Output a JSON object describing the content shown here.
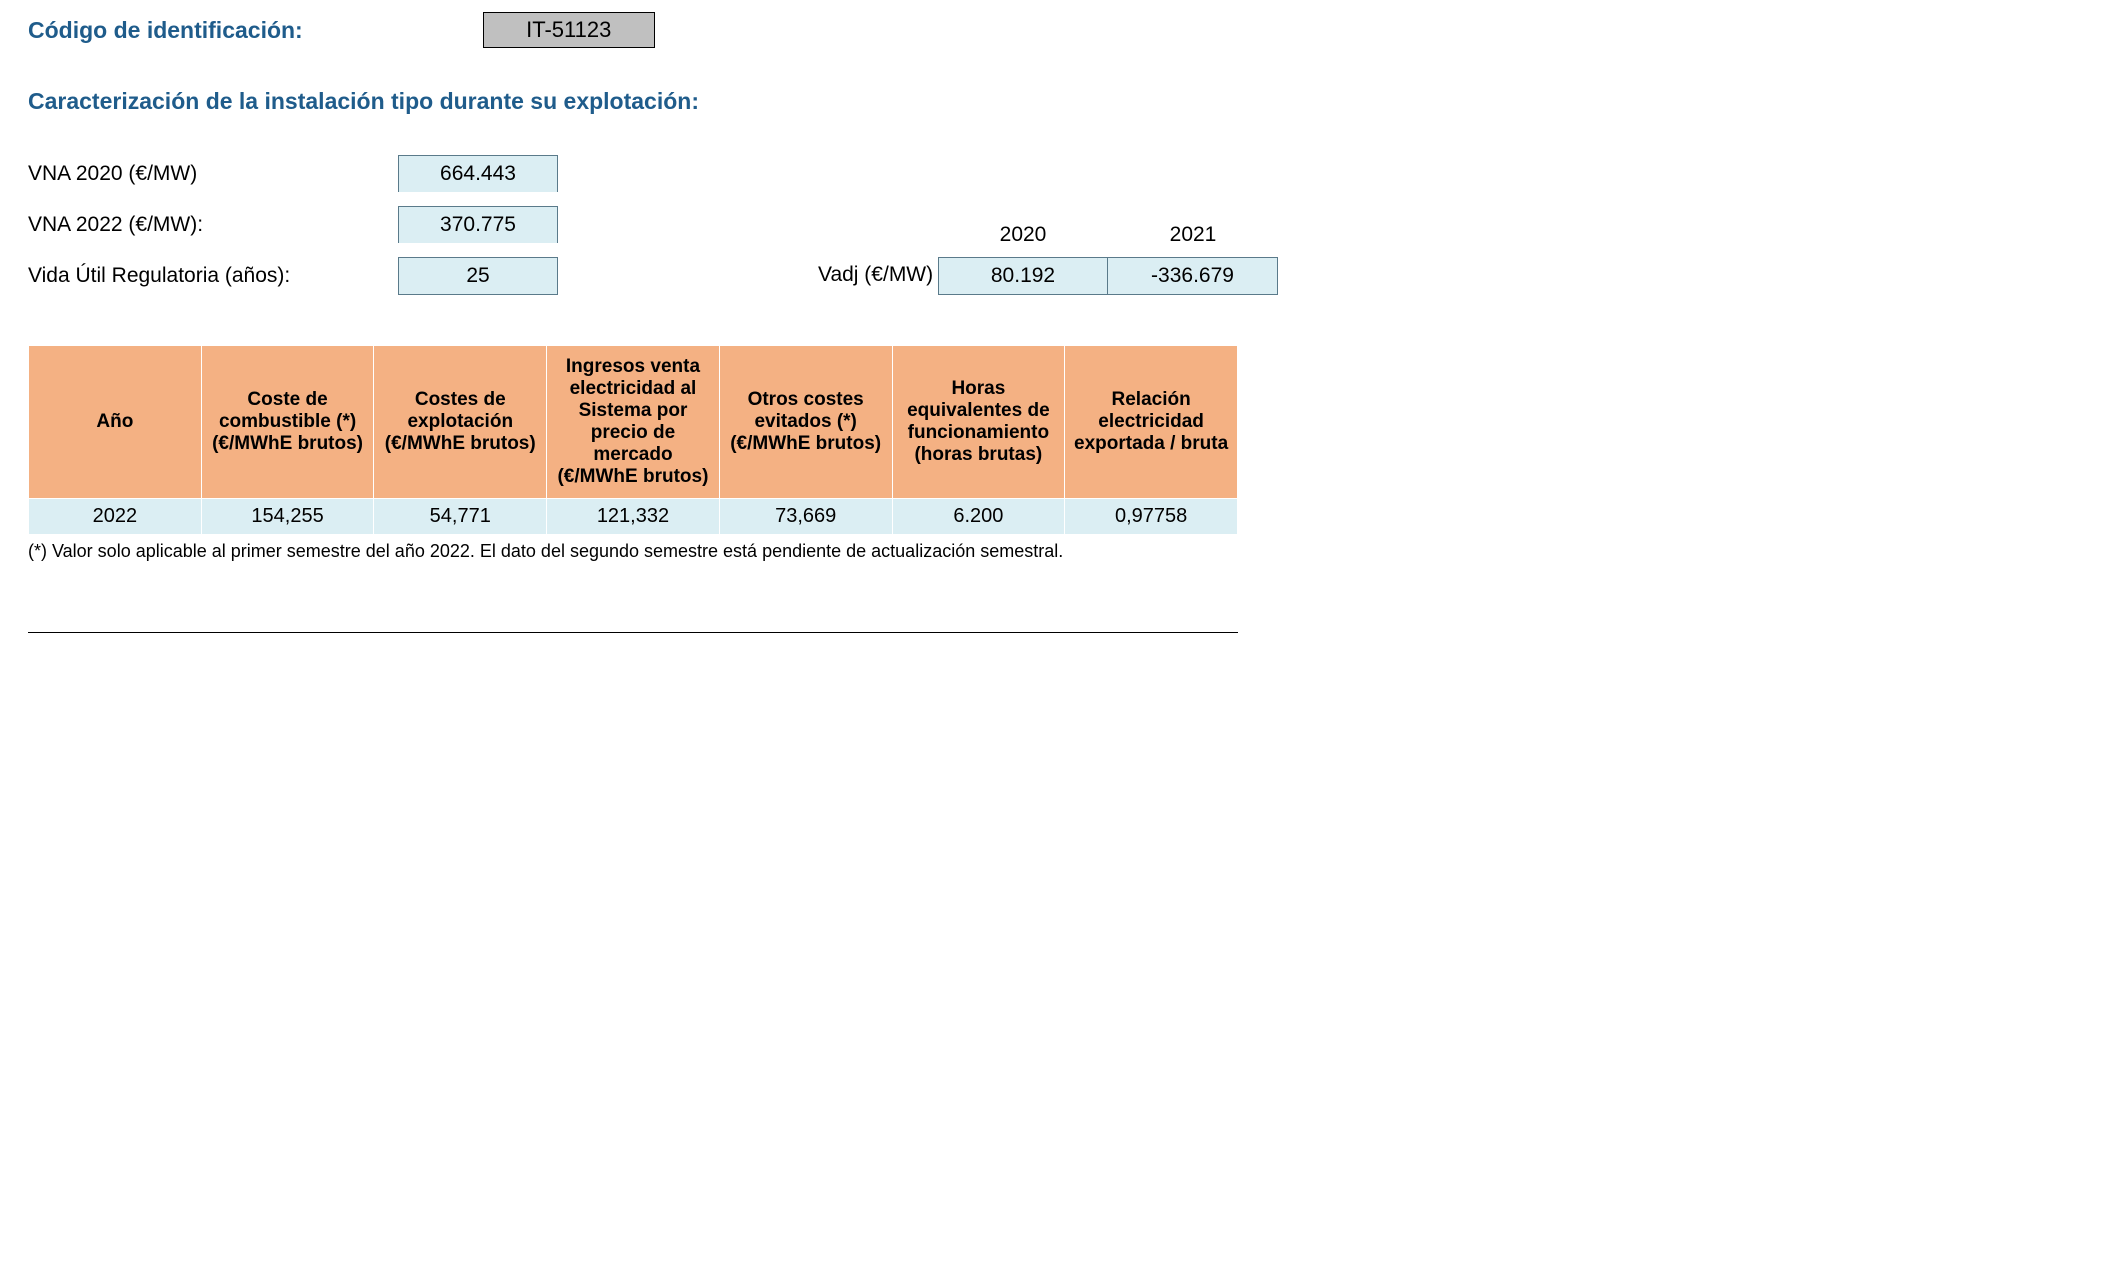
{
  "header": {
    "codigo_label": "Código de identificación:",
    "codigo_value": "IT-51123",
    "caracterizacion": "Caracterización de la instalación tipo durante su explotación:"
  },
  "params": {
    "vna2020_label": "VNA 2020 (€/MW)",
    "vna2020_value": "664.443",
    "vna2022_label": "VNA 2022 (€/MW):",
    "vna2022_value": "370.775",
    "vida_label": "Vida Útil Regulatoria (años):",
    "vida_value": "25"
  },
  "vadj": {
    "label": "Vadj (€/MW)",
    "year1": "2020",
    "year2": "2021",
    "val1": "80.192",
    "val2": "-336.679"
  },
  "table": {
    "columns": [
      "Año",
      "Coste de combustible (*) (€/MWhE brutos)",
      "Costes de explotación (€/MWhE brutos)",
      "Ingresos venta electricidad al Sistema por precio de mercado (€/MWhE brutos)",
      "Otros costes evitados (*) (€/MWhE brutos)",
      "Horas equivalentes de funcionamiento (horas brutas)",
      "Relación electricidad exportada / bruta"
    ],
    "rows": [
      [
        "2022",
        "154,255",
        "54,771",
        "121,332",
        "73,669",
        "6.200",
        "0,97758"
      ]
    ]
  },
  "footnote": "(*) Valor solo aplicable al primer semestre del año 2022. El dato del segundo semestre está pendiente de actualización semestral.",
  "styling": {
    "heading_color": "#1f5c8b",
    "code_bg": "#c0c0c0",
    "cell_bg": "#dbeef3",
    "th_bg": "#f4b183",
    "border_color": "#5a7a8a",
    "table_border_color": "#ffffff",
    "body_font": "Arial",
    "heading_fontsize": 23,
    "body_fontsize": 20,
    "th_fontsize": 19,
    "footnote_fontsize": 18
  }
}
